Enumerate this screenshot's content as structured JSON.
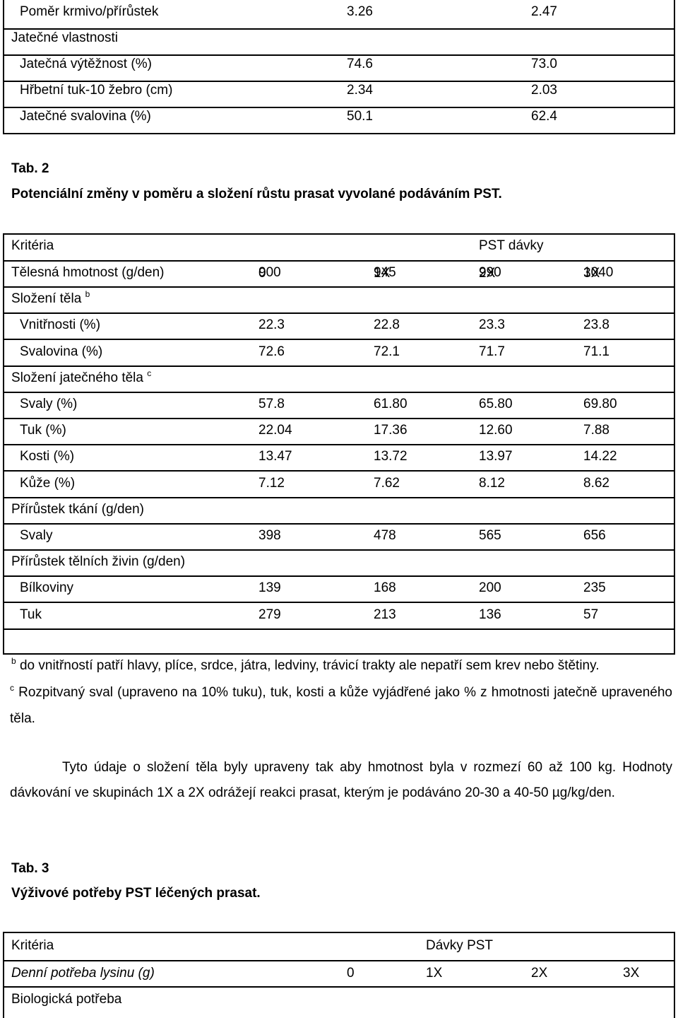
{
  "table1": {
    "rows": [
      {
        "label": "Poměr krmivo/přírůstek",
        "v1": "3.26",
        "v2": "2.47"
      },
      {
        "label": "Jatečné vlastnosti",
        "v1": "",
        "v2": ""
      },
      {
        "label": "Jatečná výtěžnost (%)",
        "v1": "74.6",
        "v2": "73.0"
      },
      {
        "label": "Hřbetní tuk-10 žebro (cm)",
        "v1": "2.34",
        "v2": "2.03"
      },
      {
        "label": "Jatečné svalovina (%)",
        "v1": "50.1",
        "v2": "62.4"
      }
    ]
  },
  "tab2": {
    "number": "Tab. 2",
    "caption": "Potenciální změny v poměru a složení růstu prasat vyvolané podáváním PST.",
    "header_criteria": "Kritéria",
    "header_group": "PST dávky",
    "columns": [
      "0",
      "1X",
      "2X",
      "3X"
    ],
    "rows": [
      {
        "label": "Tělesná hmotnost (g/den)",
        "values": [
          "900",
          "945",
          "990",
          "1040"
        ]
      },
      {
        "label": "Složení těla",
        "sup": "b",
        "values": [
          "",
          "",
          "",
          ""
        ]
      },
      {
        "label": "Vnitřnosti (%)",
        "values": [
          "22.3",
          "22.8",
          "23.3",
          "23.8"
        ]
      },
      {
        "label": "Svalovina (%)",
        "values": [
          "72.6",
          "72.1",
          "71.7",
          "71.1"
        ]
      },
      {
        "label": "Složení jatečného těla",
        "sup": "c",
        "values": [
          "",
          "",
          "",
          ""
        ]
      },
      {
        "label": "Svaly (%)",
        "values": [
          "57.8",
          "61.80",
          "65.80",
          "69.80"
        ]
      },
      {
        "label": "Tuk (%)",
        "values": [
          "22.04",
          "17.36",
          "12.60",
          "7.88"
        ]
      },
      {
        "label": "Kosti (%)",
        "values": [
          "13.47",
          "13.72",
          "13.97",
          "14.22"
        ]
      },
      {
        "label": "Kůže (%)",
        "values": [
          "7.12",
          "7.62",
          "8.12",
          "8.62"
        ]
      },
      {
        "label": "Přírůstek tkání (g/den)",
        "values": [
          "",
          "",
          "",
          ""
        ]
      },
      {
        "label": "Svaly",
        "values": [
          "398",
          "478",
          "565",
          "656"
        ]
      },
      {
        "label": "Přírůstek tělních živin (g/den)",
        "values": [
          "",
          "",
          "",
          ""
        ]
      },
      {
        "label": "Bílkoviny",
        "values": [
          "139",
          "168",
          "200",
          "235"
        ]
      },
      {
        "label": "Tuk",
        "values": [
          "279",
          "213",
          "136",
          "57"
        ]
      }
    ],
    "footnote_b_mark": "b",
    "footnote_b": "do vnitřností patří hlavy, plíce, srdce, játra, ledviny, trávicí trakty  ale nepatří sem krev nebo štětiny.",
    "footnote_c_mark": "c",
    "footnote_c": "Rozpitvaný sval (upraveno na 10% tuku), tuk, kosti a kůže vyjádřené jako % z hmotnosti jatečně upraveného těla."
  },
  "paragraph": "Tyto údaje o složení těla byly upraveny tak aby hmotnost byla v rozmezí 60 až 100 kg. Hodnoty dávkování ve skupinách 1X a 2X odrážejí reakci prasat, kterým je podáváno 20-30 a 40-50 µg/kg/den.",
  "tab3": {
    "number": "Tab. 3",
    "caption": "Výživové potřeby PST léčených prasat.",
    "header_criteria": "Kritéria",
    "header_group": "Dávky PST",
    "row1": {
      "label": "Denní potřeba lysinu (g)",
      "values": [
        "0",
        "1X",
        "2X",
        "3X"
      ]
    },
    "row2": {
      "label": "Biologická potřeba"
    }
  }
}
